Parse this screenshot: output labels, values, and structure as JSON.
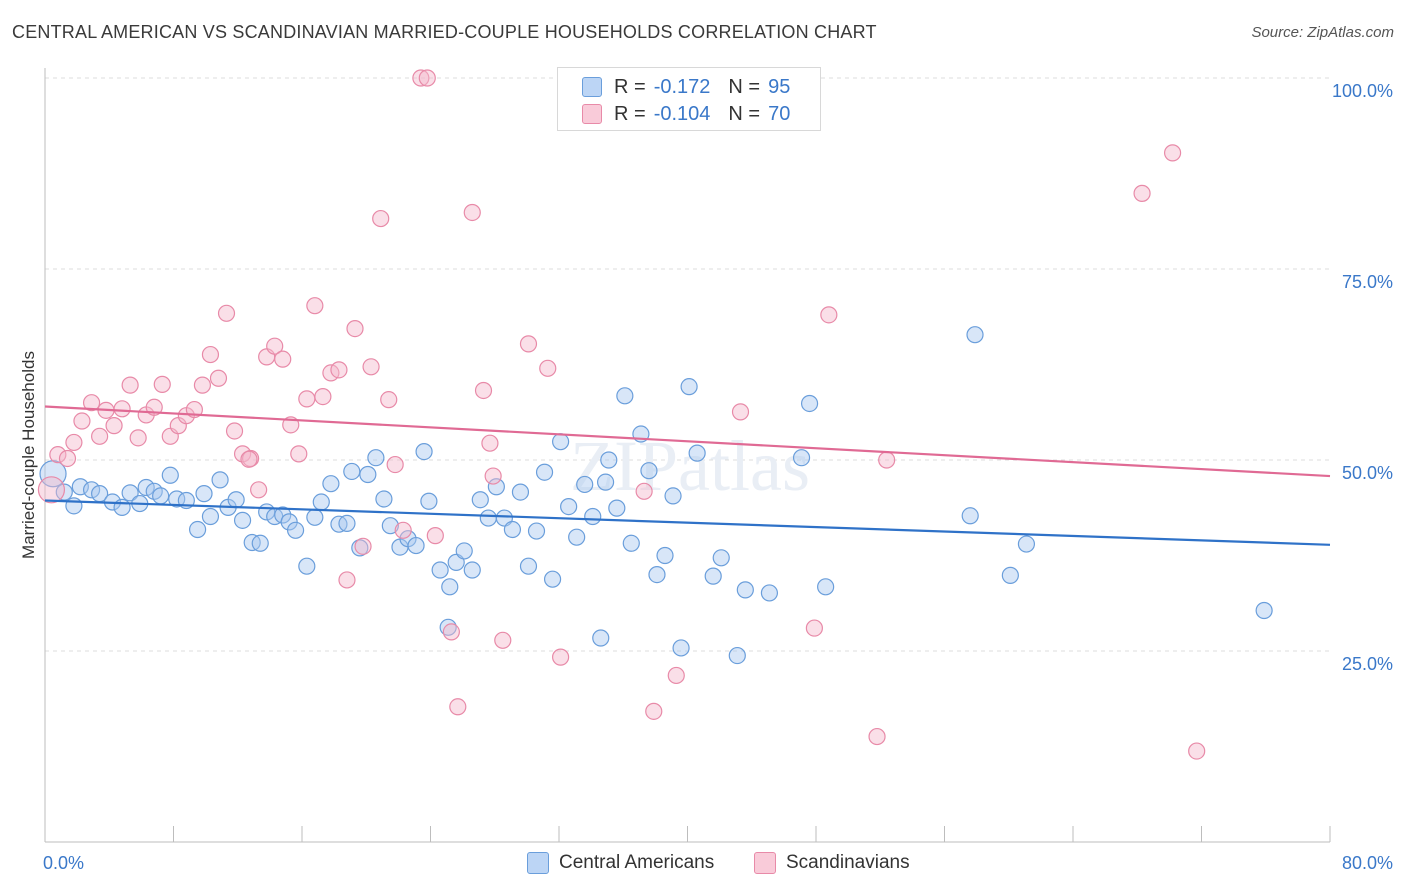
{
  "title": "CENTRAL AMERICAN VS SCANDINAVIAN MARRIED-COUPLE HOUSEHOLDS CORRELATION CHART",
  "source": "Source: ZipAtlas.com",
  "legend": {
    "r_label": "R =",
    "n_label": "N =",
    "series": [
      {
        "r": "-0.172",
        "n": "95"
      },
      {
        "r": "-0.104",
        "n": "70"
      }
    ]
  },
  "bottom_legend": [
    "Central Americans",
    "Scandinavians"
  ],
  "watermark": "ZIPatlas",
  "colors": {
    "blue_fill": "#a9c8f0",
    "blue_stroke": "#6a9edb",
    "blue_line": "#2f72c8",
    "pink_fill": "#f5b8cb",
    "pink_stroke": "#e88aa8",
    "pink_line": "#e06a94",
    "tick_text": "#3a78c9",
    "grid": "#dddddd"
  },
  "chart_data": {
    "type": "scatter",
    "title": "CENTRAL AMERICAN VS SCANDINAVIAN MARRIED-COUPLE HOUSEHOLDS CORRELATION CHART",
    "xlabel": "",
    "ylabel": "Married-couple Households",
    "xlim": [
      0,
      80
    ],
    "ylim": [
      0,
      100
    ],
    "x_tick_labels": [
      "0.0%",
      "80.0%"
    ],
    "y_ticks": [
      25,
      50,
      75,
      100
    ],
    "y_tick_labels": [
      "25.0%",
      "50.0%",
      "75.0%",
      "100.0%"
    ],
    "grid": true,
    "legend_position": "top-center",
    "series": [
      {
        "name": "Central Americans",
        "r": -0.172,
        "n": 95,
        "trend": [
          [
            0,
            44.7
          ],
          [
            80,
            38.9
          ]
        ],
        "points": [
          [
            0.5,
            48.2
          ],
          [
            1.2,
            45.8
          ],
          [
            1.8,
            44.0
          ],
          [
            2.2,
            46.5
          ],
          [
            2.9,
            46.1
          ],
          [
            3.4,
            45.6
          ],
          [
            4.2,
            44.5
          ],
          [
            4.8,
            43.8
          ],
          [
            5.3,
            45.7
          ],
          [
            5.9,
            44.3
          ],
          [
            6.3,
            46.4
          ],
          [
            6.8,
            45.9
          ],
          [
            7.2,
            45.3
          ],
          [
            7.8,
            48.0
          ],
          [
            8.2,
            44.9
          ],
          [
            8.8,
            44.7
          ],
          [
            9.5,
            40.9
          ],
          [
            9.9,
            45.6
          ],
          [
            10.3,
            42.6
          ],
          [
            10.9,
            47.4
          ],
          [
            11.4,
            43.8
          ],
          [
            11.9,
            44.8
          ],
          [
            12.3,
            42.1
          ],
          [
            12.9,
            39.2
          ],
          [
            13.4,
            39.1
          ],
          [
            13.8,
            43.2
          ],
          [
            14.3,
            42.6
          ],
          [
            14.8,
            42.8
          ],
          [
            15.2,
            41.9
          ],
          [
            15.6,
            40.8
          ],
          [
            16.3,
            36.1
          ],
          [
            16.8,
            42.5
          ],
          [
            17.2,
            44.5
          ],
          [
            17.8,
            46.9
          ],
          [
            18.3,
            41.6
          ],
          [
            18.8,
            41.7
          ],
          [
            19.1,
            48.5
          ],
          [
            19.6,
            38.5
          ],
          [
            20.1,
            48.1
          ],
          [
            20.6,
            50.3
          ],
          [
            21.1,
            44.9
          ],
          [
            21.5,
            41.4
          ],
          [
            22.1,
            38.6
          ],
          [
            22.6,
            39.7
          ],
          [
            23.1,
            38.8
          ],
          [
            23.6,
            51.1
          ],
          [
            23.9,
            44.6
          ],
          [
            24.6,
            35.6
          ],
          [
            25.2,
            33.4
          ],
          [
            25.6,
            36.6
          ],
          [
            26.1,
            38.1
          ],
          [
            26.6,
            35.6
          ],
          [
            27.1,
            44.8
          ],
          [
            27.6,
            42.4
          ],
          [
            28.1,
            46.5
          ],
          [
            28.6,
            42.4
          ],
          [
            29.1,
            40.9
          ],
          [
            29.6,
            45.8
          ],
          [
            30.1,
            36.1
          ],
          [
            30.6,
            40.7
          ],
          [
            31.1,
            48.4
          ],
          [
            31.6,
            34.4
          ],
          [
            32.1,
            52.4
          ],
          [
            32.6,
            43.9
          ],
          [
            33.1,
            39.9
          ],
          [
            33.6,
            46.8
          ],
          [
            34.1,
            42.6
          ],
          [
            34.6,
            26.7
          ],
          [
            35.1,
            50.0
          ],
          [
            35.6,
            43.7
          ],
          [
            36.1,
            58.4
          ],
          [
            36.5,
            39.1
          ],
          [
            37.1,
            53.4
          ],
          [
            37.6,
            48.6
          ],
          [
            38.1,
            35.0
          ],
          [
            38.6,
            37.5
          ],
          [
            39.1,
            45.3
          ],
          [
            39.6,
            25.4
          ],
          [
            40.1,
            59.6
          ],
          [
            40.6,
            50.9
          ],
          [
            41.6,
            34.8
          ],
          [
            42.1,
            37.2
          ],
          [
            43.1,
            24.4
          ],
          [
            43.6,
            33.0
          ],
          [
            45.1,
            32.6
          ],
          [
            47.1,
            50.3
          ],
          [
            47.6,
            57.4
          ],
          [
            48.6,
            33.4
          ],
          [
            57.6,
            42.7
          ],
          [
            57.9,
            66.4
          ],
          [
            60.1,
            34.9
          ],
          [
            61.1,
            39.0
          ],
          [
            75.9,
            30.3
          ],
          [
            25.1,
            28.1
          ],
          [
            34.9,
            47.1
          ]
        ]
      },
      {
        "name": "Scandinavians",
        "r": -0.104,
        "n": 70,
        "trend": [
          [
            0,
            57.0
          ],
          [
            80,
            47.9
          ]
        ],
        "points": [
          [
            0.4,
            46.1
          ],
          [
            0.8,
            50.7
          ],
          [
            1.4,
            50.2
          ],
          [
            1.8,
            52.3
          ],
          [
            2.3,
            55.1
          ],
          [
            2.9,
            57.5
          ],
          [
            3.4,
            53.1
          ],
          [
            3.8,
            56.5
          ],
          [
            4.3,
            54.5
          ],
          [
            4.8,
            56.7
          ],
          [
            5.3,
            59.8
          ],
          [
            5.8,
            52.9
          ],
          [
            6.3,
            55.9
          ],
          [
            6.8,
            56.9
          ],
          [
            7.3,
            59.9
          ],
          [
            7.8,
            53.1
          ],
          [
            8.3,
            54.5
          ],
          [
            8.8,
            55.8
          ],
          [
            9.3,
            56.6
          ],
          [
            9.8,
            59.8
          ],
          [
            10.3,
            63.8
          ],
          [
            10.8,
            60.7
          ],
          [
            11.3,
            69.2
          ],
          [
            11.8,
            53.8
          ],
          [
            12.3,
            50.8
          ],
          [
            12.8,
            50.2
          ],
          [
            13.3,
            46.1
          ],
          [
            13.8,
            63.5
          ],
          [
            14.3,
            64.9
          ],
          [
            14.8,
            63.2
          ],
          [
            15.3,
            54.6
          ],
          [
            15.8,
            50.8
          ],
          [
            16.3,
            58.0
          ],
          [
            16.8,
            70.2
          ],
          [
            17.3,
            58.3
          ],
          [
            17.8,
            61.4
          ],
          [
            18.3,
            61.8
          ],
          [
            18.8,
            34.3
          ],
          [
            19.3,
            67.2
          ],
          [
            19.8,
            38.7
          ],
          [
            20.3,
            62.2
          ],
          [
            20.9,
            81.6
          ],
          [
            21.4,
            57.9
          ],
          [
            21.8,
            49.4
          ],
          [
            22.3,
            40.8
          ],
          [
            23.4,
            100.0
          ],
          [
            23.8,
            100.0
          ],
          [
            24.3,
            40.1
          ],
          [
            25.3,
            27.5
          ],
          [
            25.7,
            17.7
          ],
          [
            26.6,
            82.4
          ],
          [
            27.3,
            59.1
          ],
          [
            27.7,
            52.2
          ],
          [
            27.9,
            47.9
          ],
          [
            28.5,
            26.4
          ],
          [
            30.1,
            65.2
          ],
          [
            31.3,
            62.0
          ],
          [
            32.1,
            24.2
          ],
          [
            37.3,
            45.9
          ],
          [
            37.9,
            17.1
          ],
          [
            39.3,
            21.8
          ],
          [
            43.3,
            56.3
          ],
          [
            47.9,
            28.0
          ],
          [
            48.8,
            69.0
          ],
          [
            51.8,
            13.8
          ],
          [
            52.4,
            50.0
          ],
          [
            68.3,
            84.9
          ],
          [
            70.2,
            90.2
          ],
          [
            71.7,
            11.9
          ],
          [
            12.7,
            50.1
          ]
        ]
      }
    ]
  }
}
